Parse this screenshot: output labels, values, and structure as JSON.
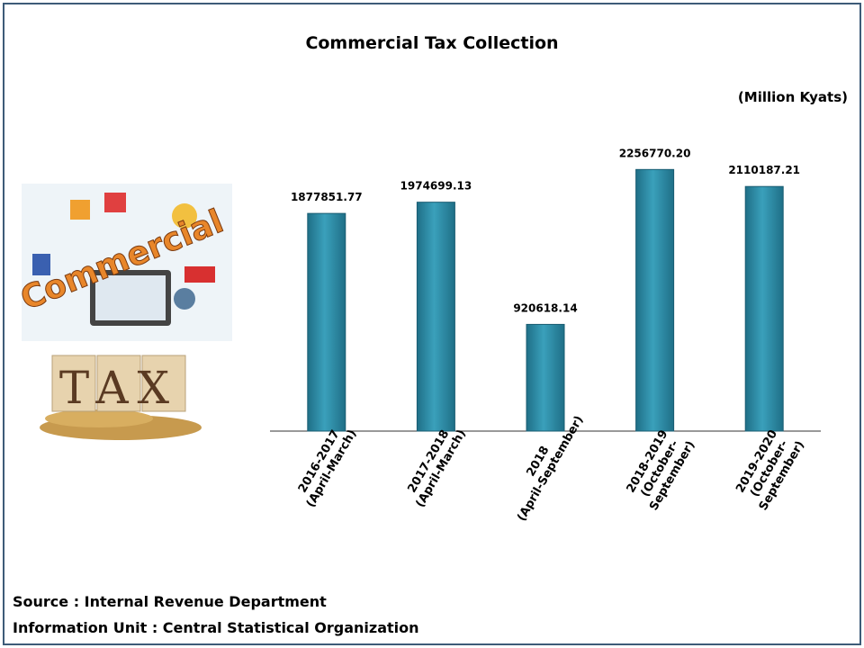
{
  "chart_data": {
    "type": "bar",
    "title": "Commercial Tax Collection",
    "unit_label": "(Million Kyats)",
    "categories": [
      "2016-2017\n(April-March)",
      "2017-2018\n(April-March)",
      "2018\n(April-September)",
      "2018-2019\n(October-\nSeptember)",
      "2019-2020\n(October-\nSeptember)"
    ],
    "values": [
      1877851.77,
      1974699.13,
      920618.14,
      2256770.2,
      2110187.21
    ],
    "value_labels": [
      "1877851.77",
      "1974699.13",
      "920618.14",
      "2256770.20",
      "2110187.21"
    ],
    "color": "#2e8ba6",
    "ylim": [
      0,
      2500000
    ],
    "grid": false
  },
  "illustration": {
    "word1": "Commercial",
    "word2": "TAX"
  },
  "footer": {
    "source": "Source : Internal Revenue Department",
    "info": "Information Unit :  Central Statistical Organization"
  }
}
